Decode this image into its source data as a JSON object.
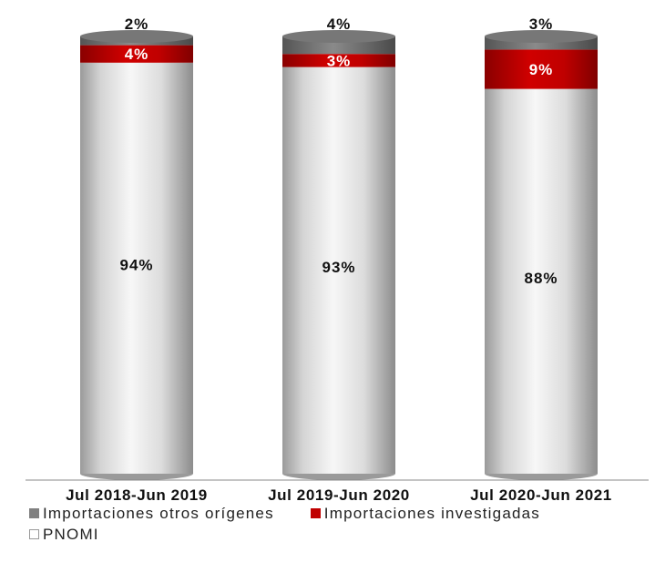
{
  "chart_data": {
    "type": "bar",
    "stacked": true,
    "categories": [
      "Jul 2018-Jun 2019",
      "Jul 2019-Jun 2020",
      "Jul 2020-Jun 2021"
    ],
    "series": [
      {
        "name": "PNOMI",
        "values": [
          94,
          93,
          88
        ],
        "labels": [
          "94%",
          "93%",
          "88%"
        ],
        "color": "#e6e6e6"
      },
      {
        "name": "Importaciones investigadas",
        "values": [
          4,
          3,
          9
        ],
        "labels": [
          "4%",
          "3%",
          "9%"
        ],
        "color": "#c00000"
      },
      {
        "name": "Importaciones otros orígenes",
        "values": [
          2,
          4,
          3
        ],
        "labels": [
          "2%",
          "4%",
          "3%"
        ],
        "color": "#808080"
      }
    ],
    "legend": [
      {
        "name": "Importaciones otros orígenes",
        "color": "#808080"
      },
      {
        "name": "Importaciones investigadas",
        "color": "#c00000"
      },
      {
        "name": "PNOMI",
        "color": "#ffffff"
      }
    ],
    "legend_position": "bottom",
    "grid": false,
    "axis_line": true
  }
}
